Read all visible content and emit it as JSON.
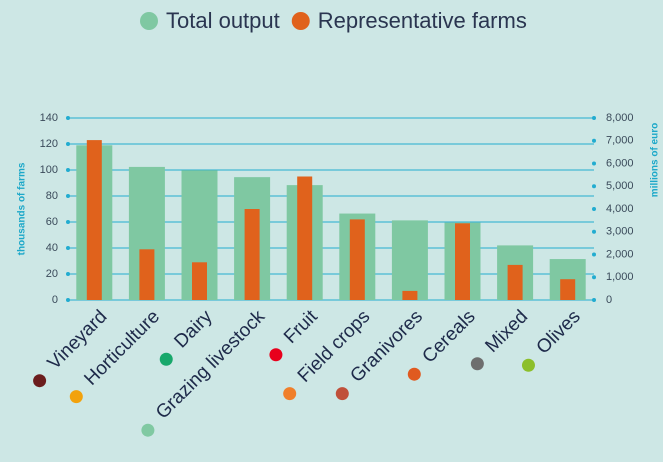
{
  "chart_data": {
    "type": "bar",
    "categories": [
      "Vineyard",
      "Horticulture",
      "Dairy",
      "Grazing livestock",
      "Fruit",
      "Field crops",
      "Granivores",
      "Cereals",
      "Mixed",
      "Olives"
    ],
    "category_colors": [
      "#6b1d1d",
      "#f2a20c",
      "#17a86b",
      "#80c9a2",
      "#e8001c",
      "#f07f2a",
      "#c0503a",
      "#e05a20",
      "#6e6e6e",
      "#8cbf2a"
    ],
    "series": [
      {
        "name": "Total output",
        "color": "#7fc8a2",
        "axis": "y2",
        "values": [
          6800,
          5850,
          5700,
          5400,
          5050,
          3800,
          3500,
          3400,
          2400,
          1800
        ]
      },
      {
        "name": "Representative farms",
        "color": "#e0621c",
        "values": [
          123,
          39,
          29,
          70,
          95,
          62,
          7,
          59,
          27,
          16
        ]
      }
    ],
    "ylabel": "thousands of farms",
    "y2label": "millions of euro",
    "ylim": [
      0,
      140
    ],
    "yticks": [
      0,
      20,
      40,
      60,
      80,
      100,
      120,
      140
    ],
    "y2lim": [
      0,
      8000
    ],
    "y2ticks": [
      0,
      {
        "value": 1000,
        "label": "1,000"
      },
      {
        "value": 2000,
        "label": "2,000"
      },
      {
        "value": 3000,
        "label": "3,000"
      },
      {
        "value": 4000,
        "label": "4,000"
      },
      {
        "value": 5000,
        "label": "5,000"
      },
      {
        "value": 6000,
        "label": "6,000"
      },
      {
        "value": 7000,
        "label": "7,000"
      },
      {
        "value": 8000,
        "label": "8,000"
      }
    ],
    "grid": true,
    "legend": "top"
  }
}
